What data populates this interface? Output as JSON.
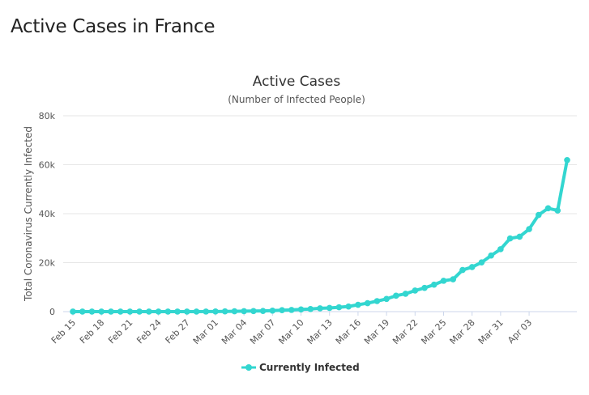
{
  "page": {
    "heading": "Active Cases in France"
  },
  "chart_data": {
    "type": "line",
    "title": "Active Cases",
    "subtitle": "(Number of Infected People)",
    "ylabel": "Total Coronavirus Currently Infected",
    "xlabel": "",
    "ylim": [
      0,
      80000
    ],
    "yticks": [
      0,
      20000,
      40000,
      60000,
      80000
    ],
    "ytick_labels": [
      "0",
      "20k",
      "40k",
      "60k",
      "80k"
    ],
    "xtick_labels": [
      "Feb 15",
      "Feb 18",
      "Feb 21",
      "Feb 24",
      "Feb 27",
      "Mar 01",
      "Mar 04",
      "Mar 07",
      "Mar 10",
      "Mar 13",
      "Mar 16",
      "Mar 19",
      "Mar 22",
      "Mar 25",
      "Mar 28",
      "Mar 31",
      "Apr 03"
    ],
    "grid": true,
    "legend_position": "bottom-center",
    "line_color": "#33d6d0",
    "series": [
      {
        "name": "Currently Infected",
        "values": [
          11,
          11,
          11,
          11,
          11,
          11,
          11,
          11,
          11,
          11,
          12,
          12,
          12,
          12,
          38,
          57,
          100,
          130,
          190,
          230,
          280,
          410,
          600,
          700,
          900,
          1060,
          1350,
          1500,
          1780,
          2100,
          2800,
          3450,
          4300,
          5200,
          6500,
          7300,
          8600,
          9700,
          11000,
          12600,
          13200,
          17000,
          18200,
          20100,
          22900,
          25500,
          29900,
          30600,
          33700,
          39500,
          42200,
          41300,
          61900
        ]
      }
    ]
  }
}
